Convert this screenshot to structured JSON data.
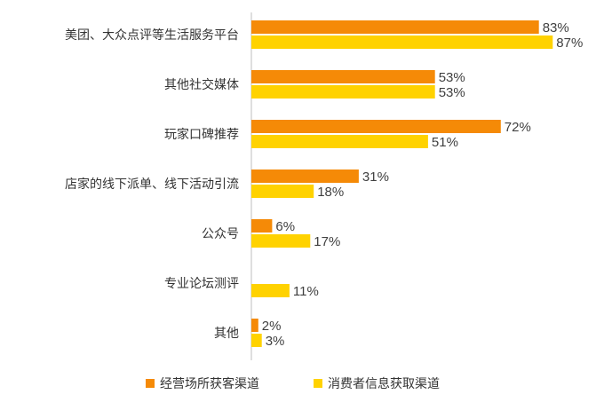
{
  "chart_data": {
    "type": "bar",
    "orientation": "horizontal",
    "categories": [
      "美团、大众点评等生活服务平台",
      "其他社交媒体",
      "玩家口碑推荐",
      "店家的线下派单、线下活动引流",
      "公众号",
      "专业论坛测评",
      "其他"
    ],
    "series": [
      {
        "name": "经营场所获客渠道",
        "color": "#F58A07",
        "values": [
          83,
          53,
          72,
          31,
          6,
          null,
          2
        ],
        "labels": [
          "83%",
          "53%",
          "72%",
          "31%",
          "6%",
          "",
          "2%"
        ]
      },
      {
        "name": "消费者信息获取渠道",
        "color": "#FFD200",
        "values": [
          87,
          53,
          51,
          18,
          17,
          11,
          3
        ],
        "labels": [
          "87%",
          "53%",
          "51%",
          "18%",
          "17%",
          "11%",
          "3%"
        ]
      }
    ],
    "xlim": [
      0,
      100
    ],
    "grid": false,
    "legend_position": "bottom"
  }
}
